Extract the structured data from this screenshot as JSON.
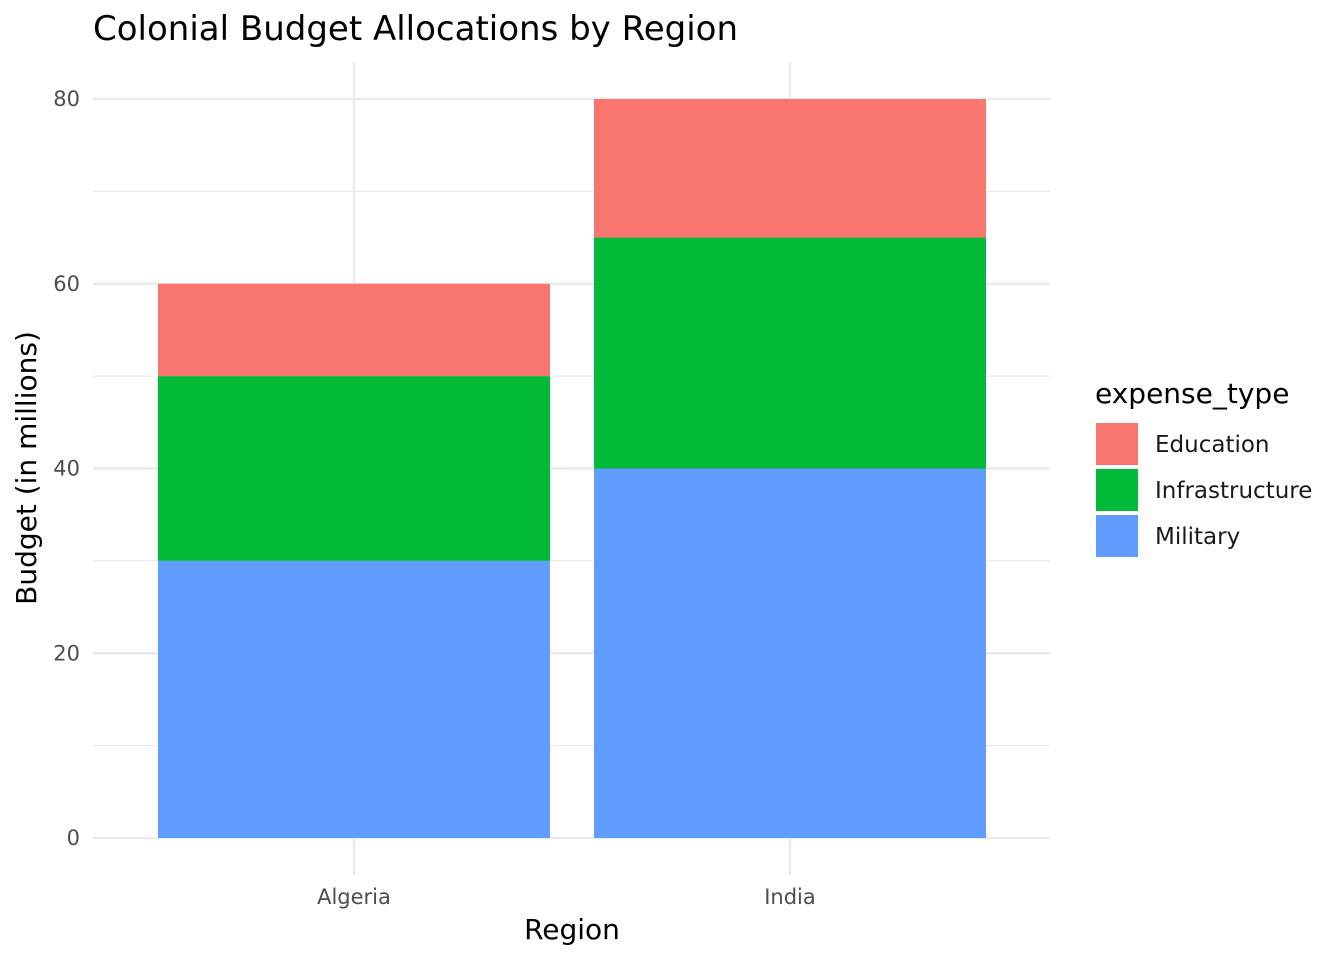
{
  "chart_data": {
    "type": "bar",
    "stacked": true,
    "title": "Colonial Budget Allocations by Region",
    "xlabel": "Region",
    "ylabel": "Budget (in millions)",
    "categories": [
      "Algeria",
      "India"
    ],
    "series": [
      {
        "name": "Military",
        "values": [
          30,
          40
        ],
        "color": "#619CFF"
      },
      {
        "name": "Infrastructure",
        "values": [
          20,
          25
        ],
        "color": "#00BA38"
      },
      {
        "name": "Education",
        "values": [
          10,
          15
        ],
        "color": "#F8766D"
      }
    ],
    "ylim": [
      0,
      80
    ],
    "yticks": [
      0,
      20,
      40,
      60,
      80
    ],
    "grid": true,
    "legend": {
      "title": "expense_type",
      "placement": "right",
      "entries": [
        "Education",
        "Infrastructure",
        "Military"
      ]
    }
  }
}
